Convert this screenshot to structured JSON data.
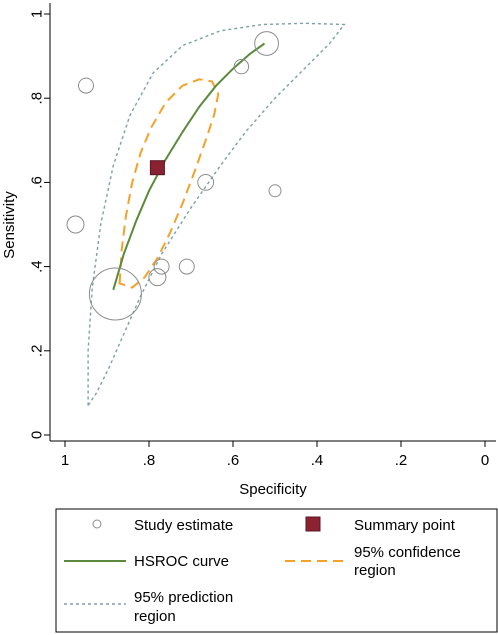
{
  "chart_data": {
    "type": "scatter",
    "xlabel": "Specificity",
    "ylabel": "Sensitivity",
    "x_reversed": true,
    "xlim": [
      1,
      0
    ],
    "ylim": [
      0,
      1
    ],
    "x_ticks": [
      {
        "value": 1,
        "label": "1"
      },
      {
        "value": 0.8,
        "label": ".8"
      },
      {
        "value": 0.6,
        "label": ".6"
      },
      {
        "value": 0.4,
        "label": ".4"
      },
      {
        "value": 0.2,
        "label": ".2"
      },
      {
        "value": 0,
        "label": "0"
      }
    ],
    "y_ticks": [
      {
        "value": 0,
        "label": "0"
      },
      {
        "value": 0.2,
        "label": ".2"
      },
      {
        "value": 0.4,
        "label": ".4"
      },
      {
        "value": 0.6,
        "label": ".6"
      },
      {
        "value": 0.8,
        "label": ".8"
      },
      {
        "value": 1,
        "label": "1"
      }
    ],
    "grid": false,
    "legend_position": "bottom",
    "studies": [
      {
        "specificity": 0.95,
        "sensitivity": 0.83,
        "weight": 0.4
      },
      {
        "specificity": 0.975,
        "sensitivity": 0.5,
        "weight": 0.45
      },
      {
        "specificity": 0.88,
        "sensitivity": 0.335,
        "weight": 1.0
      },
      {
        "specificity": 0.78,
        "sensitivity": 0.375,
        "weight": 0.45
      },
      {
        "specificity": 0.77,
        "sensitivity": 0.4,
        "weight": 0.4
      },
      {
        "specificity": 0.71,
        "sensitivity": 0.4,
        "weight": 0.4
      },
      {
        "specificity": 0.665,
        "sensitivity": 0.6,
        "weight": 0.42
      },
      {
        "specificity": 0.58,
        "sensitivity": 0.875,
        "weight": 0.38
      },
      {
        "specificity": 0.5,
        "sensitivity": 0.58,
        "weight": 0.3
      },
      {
        "specificity": 0.52,
        "sensitivity": 0.93,
        "weight": 0.6
      }
    ],
    "summary_point": {
      "specificity": 0.78,
      "sensitivity": 0.635
    },
    "hsroc_curve": [
      {
        "specificity": 0.885,
        "sensitivity": 0.345
      },
      {
        "specificity": 0.86,
        "sensitivity": 0.43
      },
      {
        "specificity": 0.83,
        "sensitivity": 0.51
      },
      {
        "specificity": 0.8,
        "sensitivity": 0.58
      },
      {
        "specificity": 0.76,
        "sensitivity": 0.655
      },
      {
        "specificity": 0.72,
        "sensitivity": 0.72
      },
      {
        "specificity": 0.68,
        "sensitivity": 0.78
      },
      {
        "specificity": 0.64,
        "sensitivity": 0.83
      },
      {
        "specificity": 0.6,
        "sensitivity": 0.87
      },
      {
        "specificity": 0.56,
        "sensitivity": 0.905
      },
      {
        "specificity": 0.525,
        "sensitivity": 0.93
      }
    ],
    "confidence_region": [
      {
        "specificity": 0.87,
        "sensitivity": 0.36
      },
      {
        "specificity": 0.865,
        "sensitivity": 0.44
      },
      {
        "specificity": 0.855,
        "sensitivity": 0.52
      },
      {
        "specificity": 0.84,
        "sensitivity": 0.6
      },
      {
        "specificity": 0.82,
        "sensitivity": 0.67
      },
      {
        "specificity": 0.795,
        "sensitivity": 0.73
      },
      {
        "specificity": 0.76,
        "sensitivity": 0.79
      },
      {
        "specificity": 0.72,
        "sensitivity": 0.83
      },
      {
        "specificity": 0.68,
        "sensitivity": 0.845
      },
      {
        "specificity": 0.65,
        "sensitivity": 0.84
      },
      {
        "specificity": 0.635,
        "sensitivity": 0.81
      },
      {
        "specificity": 0.645,
        "sensitivity": 0.76
      },
      {
        "specificity": 0.665,
        "sensitivity": 0.7
      },
      {
        "specificity": 0.69,
        "sensitivity": 0.63
      },
      {
        "specificity": 0.72,
        "sensitivity": 0.55
      },
      {
        "specificity": 0.75,
        "sensitivity": 0.48
      },
      {
        "specificity": 0.78,
        "sensitivity": 0.42
      },
      {
        "specificity": 0.81,
        "sensitivity": 0.375
      },
      {
        "specificity": 0.84,
        "sensitivity": 0.35
      },
      {
        "specificity": 0.87,
        "sensitivity": 0.36
      }
    ],
    "prediction_region": [
      {
        "specificity": 0.945,
        "sensitivity": 0.07
      },
      {
        "specificity": 0.945,
        "sensitivity": 0.2
      },
      {
        "specificity": 0.935,
        "sensitivity": 0.35
      },
      {
        "specificity": 0.915,
        "sensitivity": 0.5
      },
      {
        "specificity": 0.885,
        "sensitivity": 0.64
      },
      {
        "specificity": 0.845,
        "sensitivity": 0.76
      },
      {
        "specificity": 0.79,
        "sensitivity": 0.86
      },
      {
        "specificity": 0.72,
        "sensitivity": 0.925
      },
      {
        "specificity": 0.63,
        "sensitivity": 0.96
      },
      {
        "specificity": 0.53,
        "sensitivity": 0.975
      },
      {
        "specificity": 0.43,
        "sensitivity": 0.978
      },
      {
        "specificity": 0.335,
        "sensitivity": 0.975
      },
      {
        "specificity": 0.37,
        "sensitivity": 0.93
      },
      {
        "specificity": 0.43,
        "sensitivity": 0.87
      },
      {
        "specificity": 0.5,
        "sensitivity": 0.8
      },
      {
        "specificity": 0.57,
        "sensitivity": 0.72
      },
      {
        "specificity": 0.63,
        "sensitivity": 0.64
      },
      {
        "specificity": 0.7,
        "sensitivity": 0.54
      },
      {
        "specificity": 0.77,
        "sensitivity": 0.43
      },
      {
        "specificity": 0.82,
        "sensitivity": 0.33
      },
      {
        "specificity": 0.86,
        "sensitivity": 0.24
      },
      {
        "specificity": 0.895,
        "sensitivity": 0.16
      },
      {
        "specificity": 0.925,
        "sensitivity": 0.1
      },
      {
        "specificity": 0.945,
        "sensitivity": 0.07
      }
    ],
    "colors": {
      "study_marker": "#8c8c8c",
      "summary_point": "#8b2232",
      "hsroc_curve": "#5b8a3c",
      "confidence_region": "#f4a12a",
      "prediction_region": "#7e9fa3"
    },
    "legend": {
      "study_estimate": "Study estimate",
      "summary_point": "Summary point",
      "hsroc_curve": "HSROC curve",
      "confidence_line1": "95% confidence",
      "confidence_line2": "region",
      "prediction_line1": "95% prediction",
      "prediction_line2": "region"
    }
  }
}
